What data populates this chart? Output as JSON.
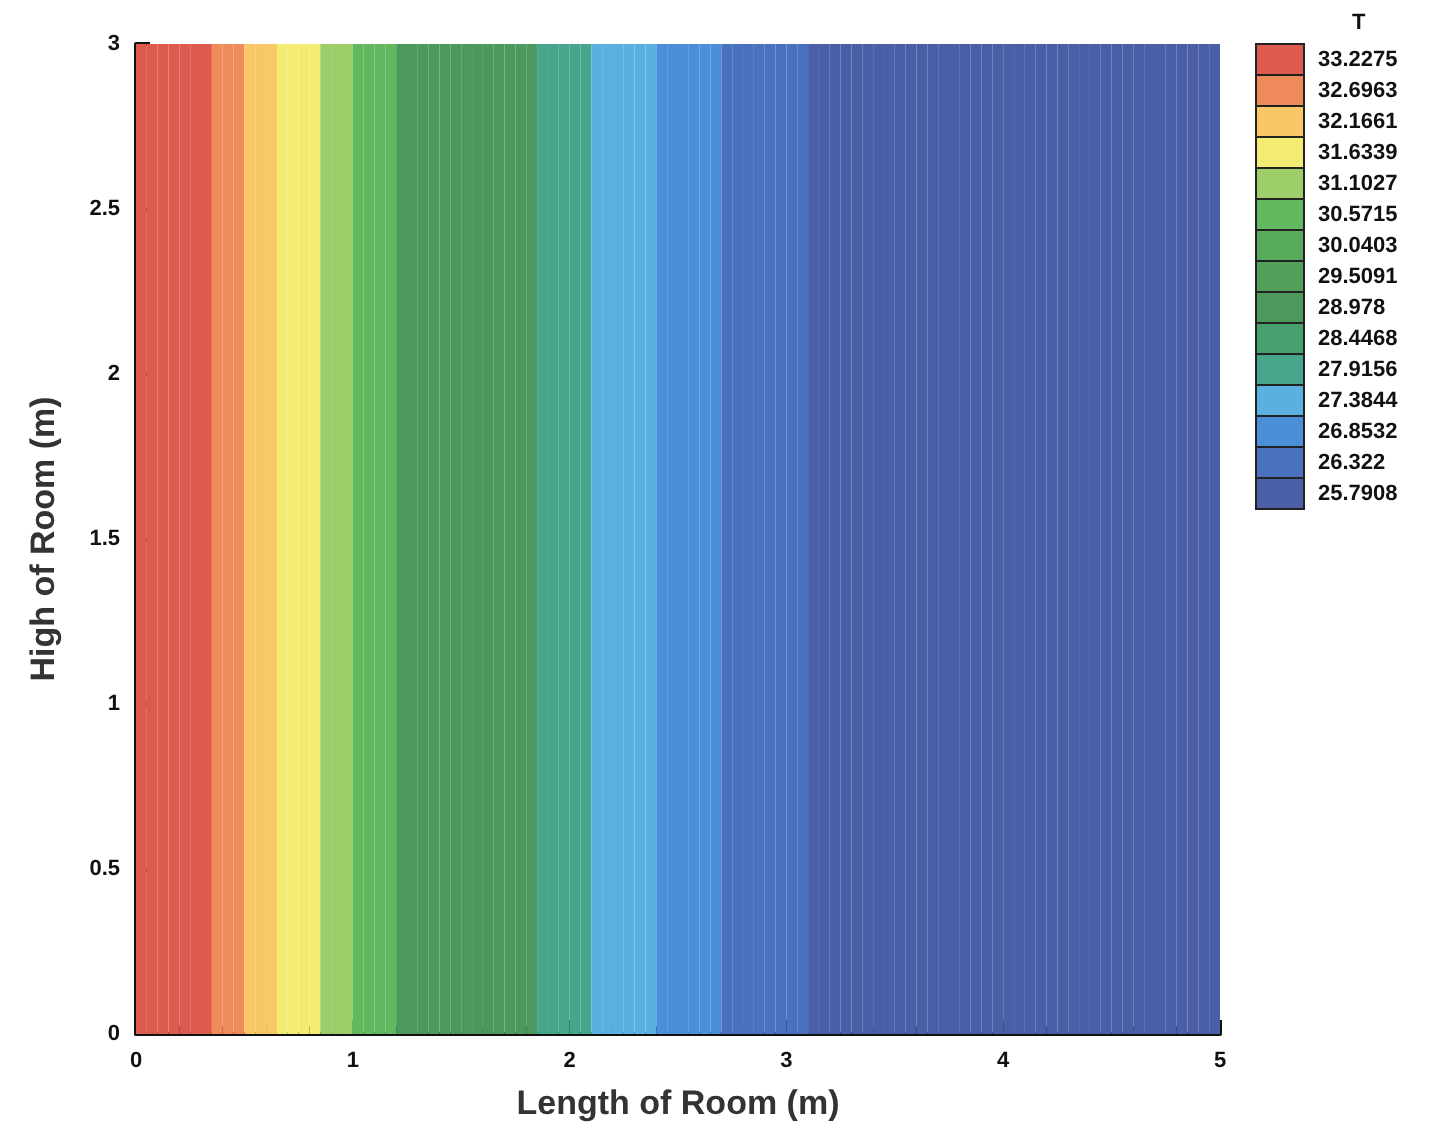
{
  "chart_data": {
    "type": "heatmap",
    "xlabel": "Length of Room (m)",
    "ylabel": "High of Room (m)",
    "clabel": "T",
    "cells": [
      [
        33.2275,
        33.2275,
        33.2275,
        33.2275,
        33.2275,
        33.2275,
        33.2275,
        32.6963,
        32.6963,
        32.6963,
        32.1661,
        32.1661,
        32.1661,
        31.6339,
        31.6339,
        31.6339,
        31.6339,
        31.1027,
        31.1027,
        31.1027,
        30.5715,
        30.5715,
        30.5715,
        30.5715,
        28.978,
        28.978,
        28.978,
        28.978,
        28.978,
        28.978,
        28.978,
        28.978,
        28.978,
        28.978,
        28.978,
        28.978,
        28.978,
        27.9156,
        27.9156,
        27.9156,
        27.9156,
        27.9156,
        27.3844,
        27.3844,
        27.3844,
        27.3844,
        27.3844,
        27.3844,
        26.8532,
        26.8532,
        26.8532,
        26.8532,
        26.8532,
        26.8532,
        26.322,
        26.322,
        26.322,
        26.322,
        26.322,
        26.322,
        26.322,
        26.322,
        25.7908,
        25.7908,
        25.7908,
        25.7908,
        25.7908,
        25.7908,
        25.7908,
        25.7908,
        25.7908,
        25.7908,
        25.7908,
        25.7908,
        25.7908,
        25.7908,
        25.7908,
        25.7908,
        25.7908,
        25.7908,
        25.7908,
        25.7908,
        25.7908,
        25.7908,
        25.7908,
        25.7908,
        25.7908,
        25.7908,
        25.7908,
        25.7908,
        25.7908,
        25.7908,
        25.7908,
        25.7908,
        25.7908,
        25.7908,
        25.7908,
        25.7908,
        25.7908,
        25.7908
      ]
    ],
    "cticks": [
      33.2275,
      32.6963,
      32.1661,
      31.6339,
      31.1027,
      30.5715,
      30.0403,
      29.5091,
      28.978,
      28.4468,
      27.9156,
      27.3844,
      26.8532,
      26.322,
      25.7908
    ],
    "colors": [
      "#dd5a4f",
      "#ef8a5a",
      "#f8c766",
      "#f4ec72",
      "#9ccd68",
      "#62b85e",
      "#58aa5c",
      "#52a05a",
      "#4d985c",
      "#47a070",
      "#47a58c",
      "#5bb0e2",
      "#4a8fd8",
      "#4a70c0",
      "#4b5ea8"
    ],
    "xlim": [
      0,
      5
    ],
    "xticks": [
      0,
      1,
      2,
      3,
      4,
      5
    ],
    "ylim": [
      0,
      3
    ],
    "yticks": [
      0,
      0.5,
      1,
      1.5,
      2,
      2.5,
      3
    ],
    "grid": false
  }
}
